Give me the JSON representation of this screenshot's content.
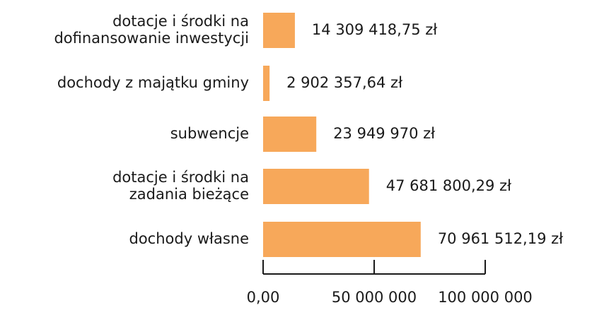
{
  "chart_data": {
    "type": "bar",
    "orientation": "horizontal",
    "categories": [
      [
        "dotacje i środki na",
        "dofinansowanie inwestycji"
      ],
      [
        "dochody z majątku gminy"
      ],
      [
        "subwencje"
      ],
      [
        "dotacje i środki na",
        "zadania bieżące"
      ],
      [
        "dochody własne"
      ]
    ],
    "values": [
      14309418.75,
      2902357.64,
      23949970,
      47681800.29,
      70961512.19
    ],
    "value_labels": [
      "14 309 418,75 zł",
      "2 902 357,64 zł",
      "23 949 970 zł",
      "47 681 800,29 zł",
      "70 961 512,19 zł"
    ],
    "color": "#f7a85a",
    "xlim": [
      0,
      100000000
    ],
    "xticks": [
      {
        "value": 0,
        "label": "0,00"
      },
      {
        "value": 50000000,
        "label": "50 000 000"
      },
      {
        "value": 100000000,
        "label": "100 000 000"
      }
    ]
  }
}
